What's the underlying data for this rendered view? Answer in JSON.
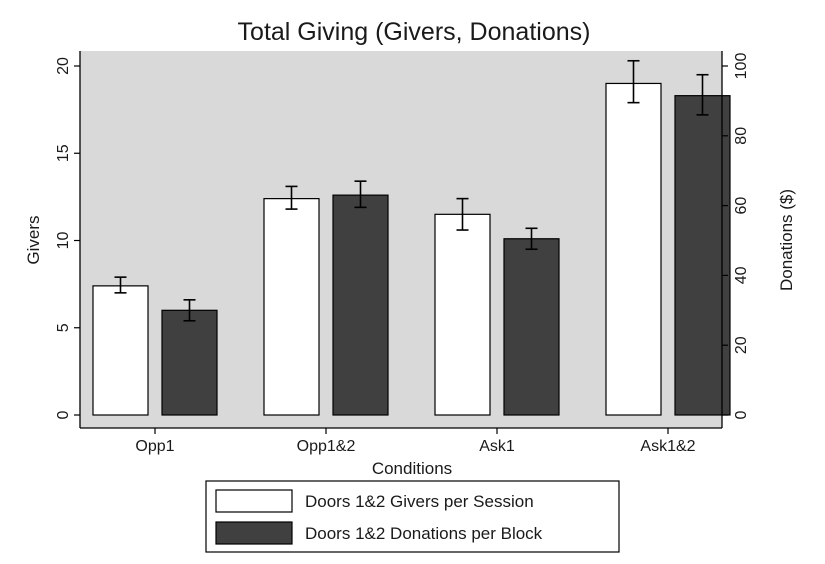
{
  "chart_data": {
    "type": "bar",
    "title": "Total Giving (Givers, Donations)",
    "xlabel": "Conditions",
    "ylabel_left": "Givers",
    "ylabel_right": "Donations ($)",
    "categories": [
      "Opp1",
      "Opp1&2",
      "Ask1",
      "Ask1&2"
    ],
    "ylim_left": [
      0,
      20
    ],
    "ylim_right": [
      0,
      100
    ],
    "yticks_left": [
      "0",
      "5",
      "10",
      "15",
      "20"
    ],
    "yticks_right": [
      "0",
      "20",
      "40",
      "60",
      "80",
      "100"
    ],
    "legend_position": "bottom",
    "grid": false,
    "plot_background": "#d9d9d9",
    "series": [
      {
        "name": "Doors 1&2 Givers per Session",
        "axis": "left",
        "color": "#ffffff",
        "values": [
          7.4,
          12.4,
          11.5,
          19.0
        ],
        "error_low": [
          7.0,
          11.8,
          10.6,
          17.9
        ],
        "error_high": [
          7.9,
          13.1,
          12.4,
          20.3
        ]
      },
      {
        "name": "Doors 1&2 Donations per Block",
        "axis": "right",
        "color": "#404040",
        "values": [
          30.0,
          63.0,
          50.5,
          91.5
        ],
        "error_low": [
          27.0,
          59.5,
          47.5,
          86.0
        ],
        "error_high": [
          33.0,
          67.0,
          53.5,
          97.5
        ]
      }
    ]
  }
}
